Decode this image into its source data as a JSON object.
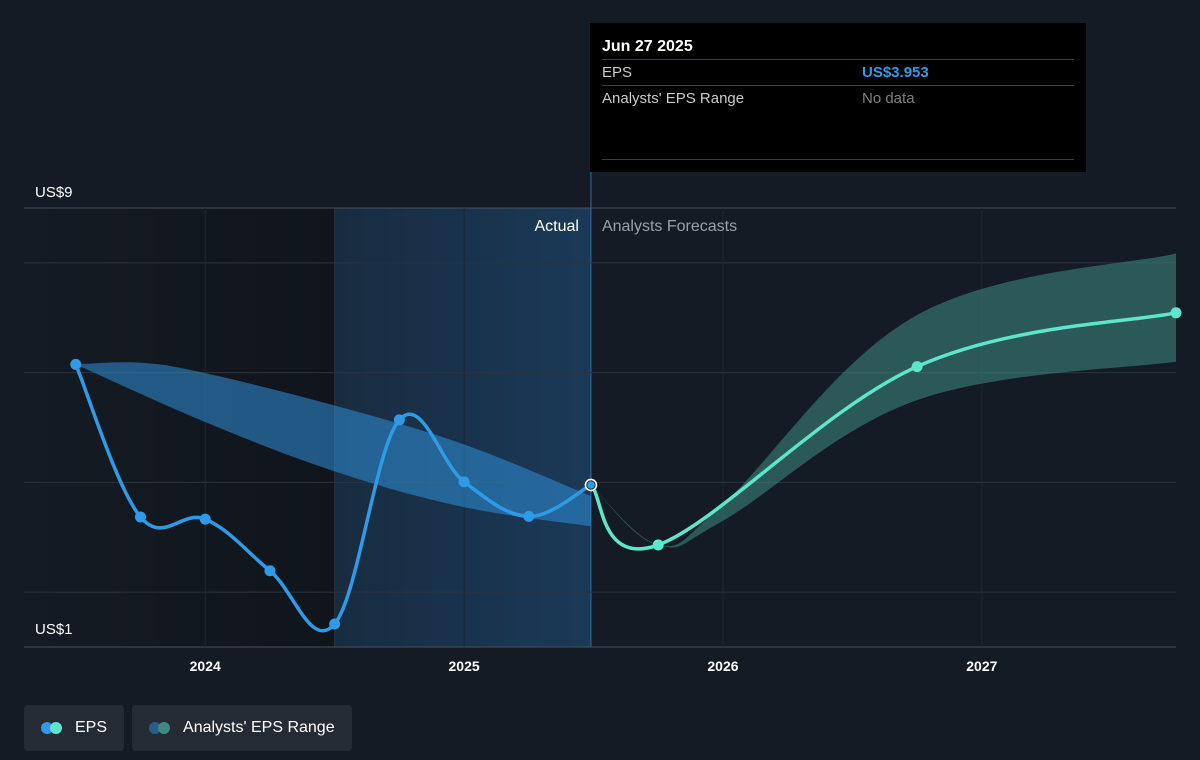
{
  "chart_data": {
    "type": "line",
    "ylim": [
      1,
      9
    ],
    "y_tick_labels": [
      "US$9",
      "US$1"
    ],
    "x_tick_labels": [
      {
        "label": "2024",
        "x": 2024.0
      },
      {
        "label": "2025",
        "x": 2025.0
      },
      {
        "label": "2026",
        "x": 2026.0
      },
      {
        "label": "2027",
        "x": 2027.0
      }
    ],
    "xlim": [
      2023.3,
      2027.75
    ],
    "gridlines": [
      9,
      8,
      6,
      4,
      2,
      1
    ],
    "divider_x": 2025.49,
    "past_shade_start_x": 2024.5,
    "region_labels": {
      "actual": "Actual",
      "forecast": "Analysts Forecasts"
    },
    "series": [
      {
        "name": "EPS",
        "color": "#2f9be6",
        "points": [
          {
            "x": 2023.5,
            "y": 6.15
          },
          {
            "x": 2023.75,
            "y": 3.37
          },
          {
            "x": 2024.0,
            "y": 3.33
          },
          {
            "x": 2024.25,
            "y": 2.39
          },
          {
            "x": 2024.5,
            "y": 1.42
          },
          {
            "x": 2024.75,
            "y": 5.14
          },
          {
            "x": 2025.0,
            "y": 4.01
          },
          {
            "x": 2025.25,
            "y": 3.38
          },
          {
            "x": 2025.49,
            "y": 3.953
          }
        ]
      },
      {
        "name": "EPS forecast",
        "color": "#5ee6cc",
        "points": [
          {
            "x": 2025.49,
            "y": 3.953
          },
          {
            "x": 2025.75,
            "y": 2.86
          },
          {
            "x": 2026.75,
            "y": 6.11
          },
          {
            "x": 2027.75,
            "y": 7.09
          }
        ]
      }
    ],
    "ranges": [
      {
        "name": "Analysts' EPS Range (past)",
        "color": "#2f8fd9",
        "upper": [
          {
            "x": 2023.5,
            "y": 6.15
          },
          {
            "x": 2023.75,
            "y": 6.18
          },
          {
            "x": 2024.0,
            "y": 5.99
          },
          {
            "x": 2024.5,
            "y": 5.4
          },
          {
            "x": 2025.0,
            "y": 4.69
          },
          {
            "x": 2025.49,
            "y": 3.75
          }
        ],
        "lower": [
          {
            "x": 2023.5,
            "y": 6.15
          },
          {
            "x": 2024.0,
            "y": 5.1
          },
          {
            "x": 2024.5,
            "y": 4.2
          },
          {
            "x": 2025.0,
            "y": 3.55
          },
          {
            "x": 2025.49,
            "y": 3.2
          }
        ]
      },
      {
        "name": "Analysts' EPS Range (forecast)",
        "color": "#3a8479",
        "upper": [
          {
            "x": 2025.49,
            "y": 3.953
          },
          {
            "x": 2025.75,
            "y": 2.86
          },
          {
            "x": 2026.0,
            "y": 3.6
          },
          {
            "x": 2026.75,
            "y": 7.05
          },
          {
            "x": 2027.75,
            "y": 8.17
          }
        ],
        "lower": [
          {
            "x": 2025.49,
            "y": 3.953
          },
          {
            "x": 2025.75,
            "y": 2.86
          },
          {
            "x": 2026.0,
            "y": 3.3
          },
          {
            "x": 2026.75,
            "y": 5.5
          },
          {
            "x": 2027.75,
            "y": 6.2
          }
        ]
      }
    ]
  },
  "tooltip": {
    "date": "Jun 27 2025",
    "rows": [
      {
        "label": "EPS",
        "value": "US$3.953"
      },
      {
        "label": "Analysts' EPS Range",
        "value": "No data"
      }
    ]
  },
  "legend": {
    "items": [
      {
        "label": "EPS",
        "colors": [
          "#2f9be6",
          "#5ee6cc"
        ]
      },
      {
        "label": "Analysts' EPS Range",
        "colors": [
          "#2a5e8a",
          "#3f8a80"
        ]
      }
    ]
  }
}
